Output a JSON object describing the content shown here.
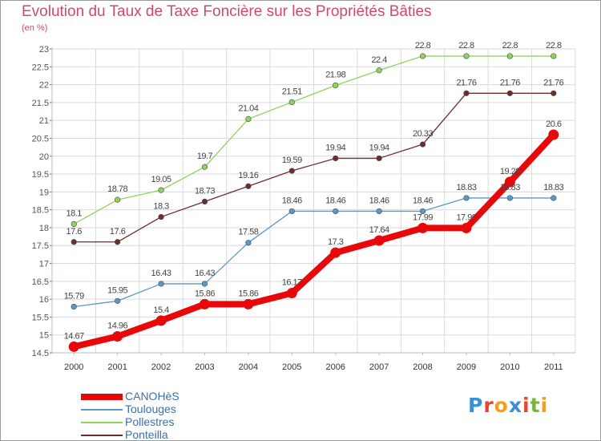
{
  "header": {
    "title": "Evolution du Taux de Taxe Foncière sur les Propriétés Bâties",
    "subtitle": "(en %)"
  },
  "brand": {
    "letters": [
      "P",
      "r",
      "o",
      "x",
      "i",
      "t",
      "i"
    ],
    "colors": [
      "#3a8fd6",
      "#e8452c",
      "#f0a020",
      "#3a8fd6",
      "#e8452c",
      "#7ab53c",
      "#f0a020"
    ]
  },
  "chart_data": {
    "type": "line",
    "title": "Evolution du Taux de Taxe Foncière sur les Propriétés Bâties",
    "ylabel": "(en %)",
    "xlabel": "",
    "x": [
      "2000",
      "2001",
      "2002",
      "2003",
      "2004",
      "2005",
      "2006",
      "2007",
      "2008",
      "2009",
      "2010",
      "2011"
    ],
    "ylim": [
      14.5,
      23
    ],
    "yticks": [
      "14.5",
      "15",
      "15.5",
      "16",
      "16.5",
      "17",
      "17.5",
      "18",
      "18.5",
      "19",
      "19.5",
      "20",
      "20.5",
      "21",
      "21.5",
      "22",
      "22.5",
      "23"
    ],
    "grid": true,
    "legend_position": "bottom-left",
    "series": [
      {
        "name": "CANOHèS",
        "color": "#e8080a",
        "values": [
          14.67,
          14.96,
          15.4,
          15.86,
          15.86,
          16.17,
          17.3,
          17.64,
          17.99,
          17.99,
          19.28,
          20.6
        ],
        "labels": [
          "14.67",
          "14.96",
          "15.4",
          "15.86",
          "15.86",
          "16.17",
          "17.3",
          "17.64",
          "17.99",
          "17.99",
          "19.28",
          "20.6"
        ]
      },
      {
        "name": "Toulouges",
        "color": "#5b98c9",
        "values": [
          15.79,
          15.95,
          16.43,
          16.43,
          17.58,
          18.46,
          18.46,
          18.46,
          18.46,
          18.83,
          18.83,
          18.83
        ],
        "labels": [
          "15.79",
          "15.95",
          "16.43",
          "16.43",
          "17.58",
          "18.46",
          "18.46",
          "18.46",
          "18.46",
          "18.83",
          "18.83",
          "18.83"
        ]
      },
      {
        "name": "Pollestres",
        "color": "#8fd35e",
        "values": [
          18.1,
          18.78,
          19.05,
          19.7,
          21.04,
          21.51,
          21.98,
          22.4,
          22.8,
          22.8,
          22.8,
          22.8
        ],
        "labels": [
          "18.1",
          "18.78",
          "19.05",
          "19.7",
          "21.04",
          "21.51",
          "21.98",
          "22.4",
          "22.8",
          "22.8",
          "22.8",
          "22.8"
        ]
      },
      {
        "name": "Ponteilla",
        "color": "#6e2c2c",
        "values": [
          17.6,
          17.6,
          18.3,
          18.73,
          19.16,
          19.59,
          19.94,
          19.94,
          20.33,
          21.76,
          21.76,
          21.76
        ],
        "labels": [
          "17.6",
          "17.6",
          "18.3",
          "18.73",
          "19.16",
          "19.59",
          "19.94",
          "19.94",
          "20.33",
          "21.76",
          "21.76",
          "21.76"
        ]
      }
    ]
  }
}
